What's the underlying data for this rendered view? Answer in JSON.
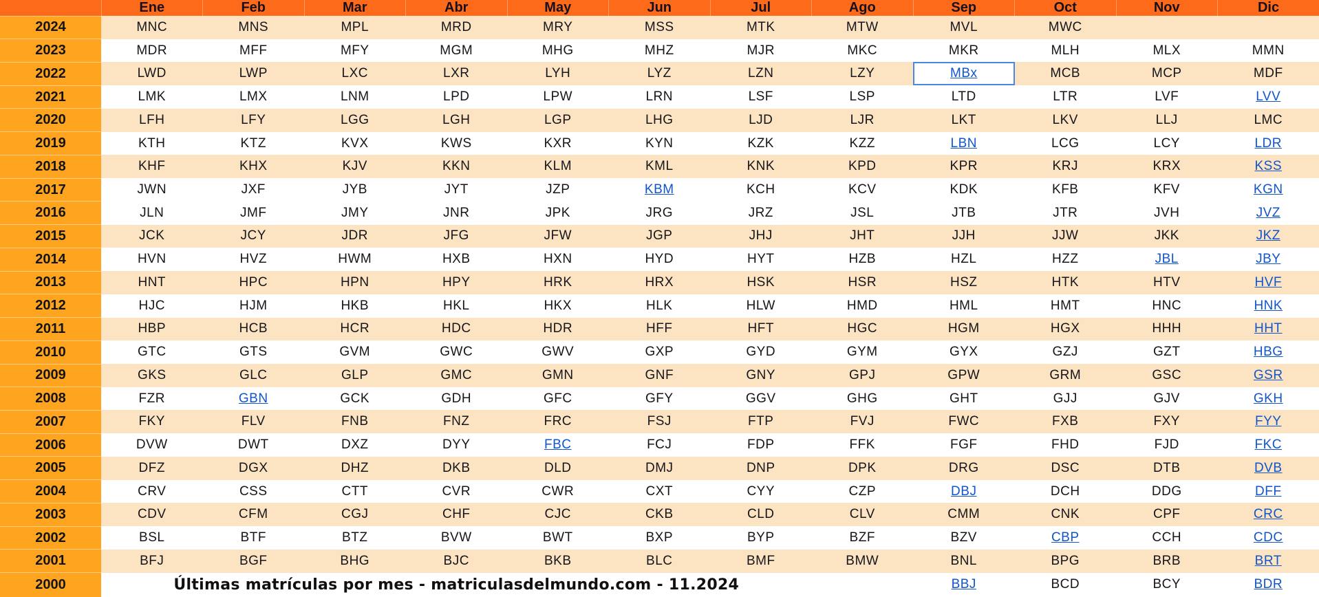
{
  "colors": {
    "header_bg": "#fd6a1a",
    "year_column_bg": "#ffa41f",
    "row_stripe": "#fce4c3",
    "link": "#1155cc",
    "selected_cell_border": "#4a86e8",
    "text": "#15151a"
  },
  "table": {
    "corner_label": "",
    "months": [
      "Ene",
      "Feb",
      "Mar",
      "Abr",
      "May",
      "Jun",
      "Jul",
      "Ago",
      "Sep",
      "Oct",
      "Nov",
      "Dic"
    ],
    "caption": "Últimas matrículas por mes - matriculasdelmundo.com - 11.2024",
    "rows": [
      {
        "year": "2024",
        "cells": [
          {
            "t": "MNC"
          },
          {
            "t": "MNS"
          },
          {
            "t": "MPL"
          },
          {
            "t": "MRD"
          },
          {
            "t": "MRY"
          },
          {
            "t": "MSS"
          },
          {
            "t": "MTK"
          },
          {
            "t": "MTW"
          },
          {
            "t": "MVL"
          },
          {
            "t": "MWC"
          },
          {
            "t": ""
          },
          {
            "t": ""
          }
        ]
      },
      {
        "year": "2023",
        "cells": [
          {
            "t": "MDR"
          },
          {
            "t": "MFF"
          },
          {
            "t": "MFY"
          },
          {
            "t": "MGM"
          },
          {
            "t": "MHG"
          },
          {
            "t": "MHZ"
          },
          {
            "t": "MJR"
          },
          {
            "t": "MKC"
          },
          {
            "t": "MKR"
          },
          {
            "t": "MLH"
          },
          {
            "t": "MLX"
          },
          {
            "t": "MMN"
          }
        ]
      },
      {
        "year": "2022",
        "cells": [
          {
            "t": "LWD"
          },
          {
            "t": "LWP"
          },
          {
            "t": "LXC"
          },
          {
            "t": "LXR"
          },
          {
            "t": "LYH"
          },
          {
            "t": "LYZ"
          },
          {
            "t": "LZN"
          },
          {
            "t": "LZY"
          },
          {
            "t": "MBx",
            "link": true,
            "selected": true
          },
          {
            "t": "MCB"
          },
          {
            "t": "MCP"
          },
          {
            "t": "MDF"
          }
        ]
      },
      {
        "year": "2021",
        "cells": [
          {
            "t": "LMK"
          },
          {
            "t": "LMX"
          },
          {
            "t": "LNM"
          },
          {
            "t": "LPD"
          },
          {
            "t": "LPW"
          },
          {
            "t": "LRN"
          },
          {
            "t": "LSF"
          },
          {
            "t": "LSP"
          },
          {
            "t": "LTD"
          },
          {
            "t": "LTR"
          },
          {
            "t": "LVF"
          },
          {
            "t": "LVV",
            "link": true
          }
        ]
      },
      {
        "year": "2020",
        "cells": [
          {
            "t": "LFH"
          },
          {
            "t": "LFY"
          },
          {
            "t": "LGG"
          },
          {
            "t": "LGH"
          },
          {
            "t": "LGP"
          },
          {
            "t": "LHG"
          },
          {
            "t": "LJD"
          },
          {
            "t": "LJR"
          },
          {
            "t": "LKT"
          },
          {
            "t": "LKV"
          },
          {
            "t": "LLJ"
          },
          {
            "t": "LMC"
          }
        ]
      },
      {
        "year": "2019",
        "cells": [
          {
            "t": "KTH"
          },
          {
            "t": "KTZ"
          },
          {
            "t": "KVX"
          },
          {
            "t": "KWS"
          },
          {
            "t": "KXR"
          },
          {
            "t": "KYN"
          },
          {
            "t": "KZK"
          },
          {
            "t": "KZZ"
          },
          {
            "t": "LBN",
            "link": true
          },
          {
            "t": "LCG"
          },
          {
            "t": "LCY"
          },
          {
            "t": "LDR",
            "link": true
          }
        ]
      },
      {
        "year": "2018",
        "cells": [
          {
            "t": "KHF"
          },
          {
            "t": "KHX"
          },
          {
            "t": "KJV"
          },
          {
            "t": "KKN"
          },
          {
            "t": "KLM"
          },
          {
            "t": "KML"
          },
          {
            "t": "KNK"
          },
          {
            "t": "KPD"
          },
          {
            "t": "KPR"
          },
          {
            "t": "KRJ"
          },
          {
            "t": "KRX"
          },
          {
            "t": "KSS",
            "link": true
          }
        ]
      },
      {
        "year": "2017",
        "cells": [
          {
            "t": "JWN"
          },
          {
            "t": "JXF"
          },
          {
            "t": "JYB"
          },
          {
            "t": "JYT"
          },
          {
            "t": "JZP"
          },
          {
            "t": "KBM",
            "link": true
          },
          {
            "t": "KCH"
          },
          {
            "t": "KCV"
          },
          {
            "t": "KDK"
          },
          {
            "t": "KFB"
          },
          {
            "t": "KFV"
          },
          {
            "t": "KGN",
            "link": true
          }
        ]
      },
      {
        "year": "2016",
        "cells": [
          {
            "t": "JLN"
          },
          {
            "t": "JMF"
          },
          {
            "t": "JMY"
          },
          {
            "t": "JNR"
          },
          {
            "t": "JPK"
          },
          {
            "t": "JRG"
          },
          {
            "t": "JRZ"
          },
          {
            "t": "JSL"
          },
          {
            "t": "JTB"
          },
          {
            "t": "JTR"
          },
          {
            "t": "JVH"
          },
          {
            "t": "JVZ",
            "link": true
          }
        ]
      },
      {
        "year": "2015",
        "cells": [
          {
            "t": "JCK"
          },
          {
            "t": "JCY"
          },
          {
            "t": "JDR"
          },
          {
            "t": "JFG"
          },
          {
            "t": "JFW"
          },
          {
            "t": "JGP"
          },
          {
            "t": "JHJ"
          },
          {
            "t": "JHT"
          },
          {
            "t": "JJH"
          },
          {
            "t": "JJW"
          },
          {
            "t": "JKK"
          },
          {
            "t": "JKZ",
            "link": true
          }
        ]
      },
      {
        "year": "2014",
        "cells": [
          {
            "t": "HVN"
          },
          {
            "t": "HVZ"
          },
          {
            "t": "HWM"
          },
          {
            "t": "HXB"
          },
          {
            "t": "HXN"
          },
          {
            "t": "HYD"
          },
          {
            "t": "HYT"
          },
          {
            "t": "HZB"
          },
          {
            "t": "HZL"
          },
          {
            "t": "HZZ"
          },
          {
            "t": "JBL",
            "link": true
          },
          {
            "t": "JBY",
            "link": true
          }
        ]
      },
      {
        "year": "2013",
        "cells": [
          {
            "t": "HNT"
          },
          {
            "t": "HPC"
          },
          {
            "t": "HPN"
          },
          {
            "t": "HPY"
          },
          {
            "t": "HRK"
          },
          {
            "t": "HRX"
          },
          {
            "t": "HSK"
          },
          {
            "t": "HSR"
          },
          {
            "t": "HSZ"
          },
          {
            "t": "HTK"
          },
          {
            "t": "HTV"
          },
          {
            "t": "HVF",
            "link": true
          }
        ]
      },
      {
        "year": "2012",
        "cells": [
          {
            "t": "HJC"
          },
          {
            "t": "HJM"
          },
          {
            "t": "HKB"
          },
          {
            "t": "HKL"
          },
          {
            "t": "HKX"
          },
          {
            "t": "HLK"
          },
          {
            "t": "HLW"
          },
          {
            "t": "HMD"
          },
          {
            "t": "HML"
          },
          {
            "t": "HMT"
          },
          {
            "t": "HNC"
          },
          {
            "t": "HNK",
            "link": true
          }
        ]
      },
      {
        "year": "2011",
        "cells": [
          {
            "t": "HBP"
          },
          {
            "t": "HCB"
          },
          {
            "t": "HCR"
          },
          {
            "t": "HDC"
          },
          {
            "t": "HDR"
          },
          {
            "t": "HFF"
          },
          {
            "t": "HFT"
          },
          {
            "t": "HGC"
          },
          {
            "t": "HGM"
          },
          {
            "t": "HGX"
          },
          {
            "t": "HHH"
          },
          {
            "t": "HHT",
            "link": true
          }
        ]
      },
      {
        "year": "2010",
        "cells": [
          {
            "t": "GTC"
          },
          {
            "t": "GTS"
          },
          {
            "t": "GVM"
          },
          {
            "t": "GWC"
          },
          {
            "t": "GWV"
          },
          {
            "t": "GXP"
          },
          {
            "t": "GYD"
          },
          {
            "t": "GYM"
          },
          {
            "t": "GYX"
          },
          {
            "t": "GZJ"
          },
          {
            "t": "GZT"
          },
          {
            "t": "HBG",
            "link": true
          }
        ]
      },
      {
        "year": "2009",
        "cells": [
          {
            "t": "GKS"
          },
          {
            "t": "GLC"
          },
          {
            "t": "GLP"
          },
          {
            "t": "GMC"
          },
          {
            "t": "GMN"
          },
          {
            "t": "GNF"
          },
          {
            "t": "GNY"
          },
          {
            "t": "GPJ"
          },
          {
            "t": "GPW"
          },
          {
            "t": "GRM"
          },
          {
            "t": "GSC"
          },
          {
            "t": "GSR",
            "link": true
          }
        ]
      },
      {
        "year": "2008",
        "cells": [
          {
            "t": "FZR"
          },
          {
            "t": "GBN",
            "link": true
          },
          {
            "t": "GCK"
          },
          {
            "t": "GDH"
          },
          {
            "t": "GFC"
          },
          {
            "t": "GFY"
          },
          {
            "t": "GGV"
          },
          {
            "t": "GHG"
          },
          {
            "t": "GHT"
          },
          {
            "t": "GJJ"
          },
          {
            "t": "GJV"
          },
          {
            "t": "GKH",
            "link": true
          }
        ]
      },
      {
        "year": "2007",
        "cells": [
          {
            "t": "FKY"
          },
          {
            "t": "FLV"
          },
          {
            "t": "FNB"
          },
          {
            "t": "FNZ"
          },
          {
            "t": "FRC"
          },
          {
            "t": "FSJ"
          },
          {
            "t": "FTP"
          },
          {
            "t": "FVJ"
          },
          {
            "t": "FWC"
          },
          {
            "t": "FXB"
          },
          {
            "t": "FXY"
          },
          {
            "t": "FYY",
            "link": true
          }
        ]
      },
      {
        "year": "2006",
        "cells": [
          {
            "t": "DVW"
          },
          {
            "t": "DWT"
          },
          {
            "t": "DXZ"
          },
          {
            "t": "DYY"
          },
          {
            "t": "FBC",
            "link": true
          },
          {
            "t": "FCJ"
          },
          {
            "t": "FDP"
          },
          {
            "t": "FFK"
          },
          {
            "t": "FGF"
          },
          {
            "t": "FHD"
          },
          {
            "t": "FJD"
          },
          {
            "t": "FKC",
            "link": true
          }
        ]
      },
      {
        "year": "2005",
        "cells": [
          {
            "t": "DFZ"
          },
          {
            "t": "DGX"
          },
          {
            "t": "DHZ"
          },
          {
            "t": "DKB"
          },
          {
            "t": "DLD"
          },
          {
            "t": "DMJ"
          },
          {
            "t": "DNP"
          },
          {
            "t": "DPK"
          },
          {
            "t": "DRG"
          },
          {
            "t": "DSC"
          },
          {
            "t": "DTB"
          },
          {
            "t": "DVB",
            "link": true
          }
        ]
      },
      {
        "year": "2004",
        "cells": [
          {
            "t": "CRV"
          },
          {
            "t": "CSS"
          },
          {
            "t": "CTT"
          },
          {
            "t": "CVR"
          },
          {
            "t": "CWR"
          },
          {
            "t": "CXT"
          },
          {
            "t": "CYY"
          },
          {
            "t": "CZP"
          },
          {
            "t": "DBJ",
            "link": true
          },
          {
            "t": "DCH"
          },
          {
            "t": "DDG"
          },
          {
            "t": "DFF",
            "link": true
          }
        ]
      },
      {
        "year": "2003",
        "cells": [
          {
            "t": "CDV"
          },
          {
            "t": "CFM"
          },
          {
            "t": "CGJ"
          },
          {
            "t": "CHF"
          },
          {
            "t": "CJC"
          },
          {
            "t": "CKB"
          },
          {
            "t": "CLD"
          },
          {
            "t": "CLV"
          },
          {
            "t": "CMM"
          },
          {
            "t": "CNK"
          },
          {
            "t": "CPF"
          },
          {
            "t": "CRC",
            "link": true
          }
        ]
      },
      {
        "year": "2002",
        "cells": [
          {
            "t": "BSL"
          },
          {
            "t": "BTF"
          },
          {
            "t": "BTZ"
          },
          {
            "t": "BVW"
          },
          {
            "t": "BWT"
          },
          {
            "t": "BXP"
          },
          {
            "t": "BYP"
          },
          {
            "t": "BZF"
          },
          {
            "t": "BZV"
          },
          {
            "t": "CBP",
            "link": true
          },
          {
            "t": "CCH"
          },
          {
            "t": "CDC",
            "link": true
          }
        ]
      },
      {
        "year": "2001",
        "cells": [
          {
            "t": "BFJ"
          },
          {
            "t": "BGF"
          },
          {
            "t": "BHG"
          },
          {
            "t": "BJC"
          },
          {
            "t": "BKB"
          },
          {
            "t": "BLC"
          },
          {
            "t": "BMF"
          },
          {
            "t": "BMW"
          },
          {
            "t": "BNL"
          },
          {
            "t": "BPG"
          },
          {
            "t": "BRB"
          },
          {
            "t": "BRT",
            "link": true
          }
        ]
      },
      {
        "year": "2000",
        "caption": true,
        "caption_span": 7,
        "cells": [
          {
            "t": "BBJ",
            "link": true
          },
          {
            "t": "BCD"
          },
          {
            "t": "BCY"
          },
          {
            "t": "BDR",
            "link": true
          }
        ]
      }
    ]
  }
}
